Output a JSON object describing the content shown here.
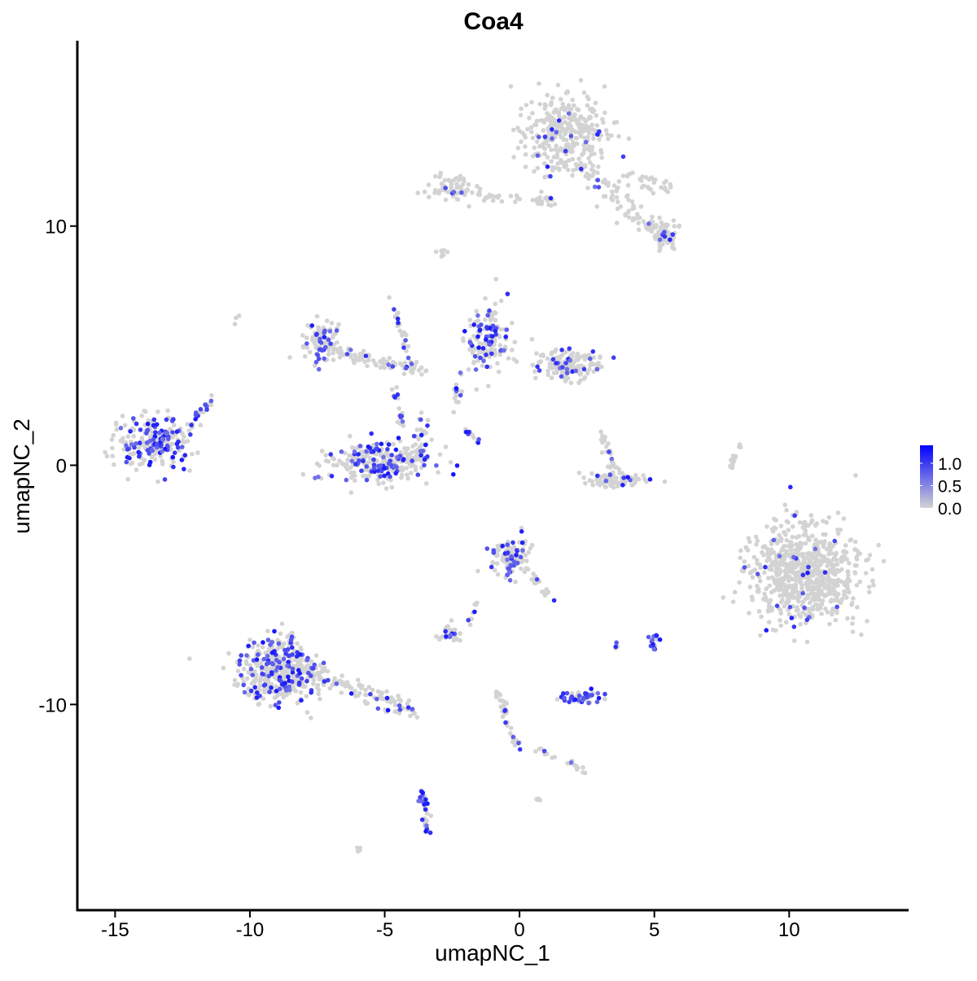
{
  "chart_data": {
    "type": "scatter",
    "title": "Coa4",
    "xlabel": "umapNC_1",
    "ylabel": "umapNC_2",
    "xlim": [
      -16.4,
      14.4
    ],
    "ylim": [
      -18.6,
      17.75
    ],
    "xticks": [
      -15,
      -10,
      -5,
      0,
      5,
      10
    ],
    "xtick_labels": [
      "-15",
      "-10",
      "-5",
      "0",
      "5",
      "10"
    ],
    "yticks": [
      -10,
      0,
      10
    ],
    "ytick_labels": [
      "-10",
      "0",
      "10"
    ],
    "grid": false,
    "legend": {
      "placement": "right",
      "type": "colorbar",
      "ticks": [
        0.0,
        0.5,
        1.0
      ],
      "tick_labels": [
        "0.0",
        "0.5",
        "1.0"
      ],
      "range": [
        0,
        1.4
      ]
    },
    "colors": {
      "low": "#d3d3d3",
      "high": "#0000ff"
    },
    "note_on_clusters": "",
    "clusters": [
      {
        "cx": 1.6,
        "cy": 14.0,
        "sx": 1.0,
        "sy": 1.2,
        "n": 320,
        "expr_frac": 0.04
      },
      {
        "seg": [
          [
            2.2,
            12.5
          ],
          [
            5.6,
            9.3
          ]
        ],
        "w": 0.45,
        "n": 110,
        "expr_frac": 0.05
      },
      {
        "cx": 5.3,
        "cy": 9.6,
        "sx": 0.5,
        "sy": 0.35,
        "n": 50,
        "expr_frac": 0.12
      },
      {
        "seg": [
          [
            3.8,
            12.0
          ],
          [
            5.5,
            11.7
          ]
        ],
        "w": 0.35,
        "n": 30,
        "expr_frac": 0.0
      },
      {
        "cx": -2.5,
        "cy": 11.6,
        "sx": 0.6,
        "sy": 0.35,
        "n": 60,
        "expr_frac": 0.08
      },
      {
        "seg": [
          [
            -1.7,
            11.3
          ],
          [
            1.3,
            11.0
          ]
        ],
        "w": 0.2,
        "n": 40,
        "expr_frac": 0.05
      },
      {
        "cx": -2.8,
        "cy": 8.9,
        "sx": 0.2,
        "sy": 0.1,
        "n": 8,
        "expr_frac": 0.0
      },
      {
        "cx": -13.6,
        "cy": 1.0,
        "sx": 0.9,
        "sy": 0.75,
        "n": 230,
        "expr_frac": 0.4
      },
      {
        "seg": [
          [
            -12.3,
            1.5
          ],
          [
            -11.4,
            2.8
          ]
        ],
        "w": 0.2,
        "n": 20,
        "expr_frac": 0.5
      },
      {
        "cx": -5.1,
        "cy": 0.1,
        "sx": 1.3,
        "sy": 0.55,
        "n": 270,
        "expr_frac": 0.25
      },
      {
        "seg": [
          [
            -3.7,
            0.2
          ],
          [
            -3.6,
            2.2
          ]
        ],
        "w": 0.3,
        "n": 40,
        "expr_frac": 0.3
      },
      {
        "cx": -7.4,
        "cy": 5.3,
        "sx": 0.45,
        "sy": 0.7,
        "n": 80,
        "expr_frac": 0.25
      },
      {
        "seg": [
          [
            -7.0,
            4.8
          ],
          [
            -3.4,
            3.9
          ]
        ],
        "w": 0.3,
        "n": 90,
        "expr_frac": 0.15
      },
      {
        "seg": [
          [
            -4.8,
            7.4
          ],
          [
            -4.0,
            4.0
          ]
        ],
        "w": 0.15,
        "n": 25,
        "expr_frac": 0.3
      },
      {
        "seg": [
          [
            -4.7,
            3.3
          ],
          [
            -4.3,
            1.6
          ]
        ],
        "w": 0.2,
        "n": 15,
        "expr_frac": 0.3
      },
      {
        "cx": -1.2,
        "cy": 5.2,
        "sx": 0.5,
        "sy": 0.9,
        "n": 150,
        "expr_frac": 0.3
      },
      {
        "cx": 1.8,
        "cy": 4.2,
        "sx": 0.9,
        "sy": 0.4,
        "n": 160,
        "expr_frac": 0.12
      },
      {
        "seg": [
          [
            -2.2,
            3.8
          ],
          [
            -2.4,
            2.3
          ]
        ],
        "w": 0.15,
        "n": 15,
        "expr_frac": 0.4
      },
      {
        "seg": [
          [
            -2.2,
            1.6
          ],
          [
            -1.4,
            0.9
          ]
        ],
        "w": 0.1,
        "n": 10,
        "expr_frac": 0.5
      },
      {
        "cx": 3.4,
        "cy": -0.6,
        "sx": 0.8,
        "sy": 0.2,
        "n": 80,
        "expr_frac": 0.08
      },
      {
        "seg": [
          [
            3.0,
            1.3
          ],
          [
            3.6,
            -0.3
          ]
        ],
        "w": 0.2,
        "n": 30,
        "expr_frac": 0.05
      },
      {
        "seg": [
          [
            7.8,
            -0.2
          ],
          [
            8.2,
            1.0
          ]
        ],
        "w": 0.08,
        "n": 15,
        "expr_frac": 0.0
      },
      {
        "cx": 10.6,
        "cy": -4.6,
        "sx": 1.3,
        "sy": 1.3,
        "n": 750,
        "expr_frac": 0.02
      },
      {
        "cx": -9.0,
        "cy": -8.6,
        "sx": 0.9,
        "sy": 0.9,
        "n": 420,
        "expr_frac": 0.25
      },
      {
        "seg": [
          [
            -8.0,
            -8.5
          ],
          [
            -3.8,
            -10.4
          ]
        ],
        "w": 0.35,
        "n": 130,
        "expr_frac": 0.15
      },
      {
        "cx": -0.3,
        "cy": -3.8,
        "sx": 0.5,
        "sy": 0.55,
        "n": 110,
        "expr_frac": 0.2
      },
      {
        "seg": [
          [
            0.3,
            -4.3
          ],
          [
            1.2,
            -5.6
          ]
        ],
        "w": 0.15,
        "n": 20,
        "expr_frac": 0.1
      },
      {
        "cx": 2.3,
        "cy": -9.7,
        "sx": 0.55,
        "sy": 0.2,
        "n": 50,
        "expr_frac": 0.7
      },
      {
        "cx": -2.6,
        "cy": -7.0,
        "sx": 0.3,
        "sy": 0.25,
        "n": 35,
        "expr_frac": 0.3
      },
      {
        "seg": [
          [
            -1.9,
            -6.7
          ],
          [
            -1.6,
            -5.7
          ]
        ],
        "w": 0.1,
        "n": 10,
        "expr_frac": 0.3
      },
      {
        "cx": 5.0,
        "cy": -7.4,
        "sx": 0.15,
        "sy": 0.25,
        "n": 14,
        "expr_frac": 0.9
      },
      {
        "seg": [
          [
            -3.6,
            -13.6
          ],
          [
            -3.4,
            -15.4
          ]
        ],
        "w": 0.15,
        "n": 35,
        "expr_frac": 0.4
      },
      {
        "seg": [
          [
            -0.8,
            -9.5
          ],
          [
            0.0,
            -12.0
          ]
        ],
        "w": 0.15,
        "n": 40,
        "expr_frac": 0.15
      },
      {
        "seg": [
          [
            0.5,
            -11.8
          ],
          [
            2.5,
            -12.8
          ]
        ],
        "w": 0.15,
        "n": 20,
        "expr_frac": 0.05
      },
      {
        "cx": -6.0,
        "cy": -16.0,
        "sx": 0.1,
        "sy": 0.1,
        "n": 4,
        "expr_frac": 0.0
      },
      {
        "cx": 0.7,
        "cy": -14.0,
        "sx": 0.1,
        "sy": 0.1,
        "n": 4,
        "expr_frac": 0.0
      },
      {
        "cx": -10.5,
        "cy": 6.1,
        "sx": 0.1,
        "sy": 0.1,
        "n": 3,
        "expr_frac": 0.0
      },
      {
        "cx": 3.6,
        "cy": -7.6,
        "sx": 0.1,
        "sy": 0.1,
        "n": 4,
        "expr_frac": 0.5
      }
    ]
  }
}
